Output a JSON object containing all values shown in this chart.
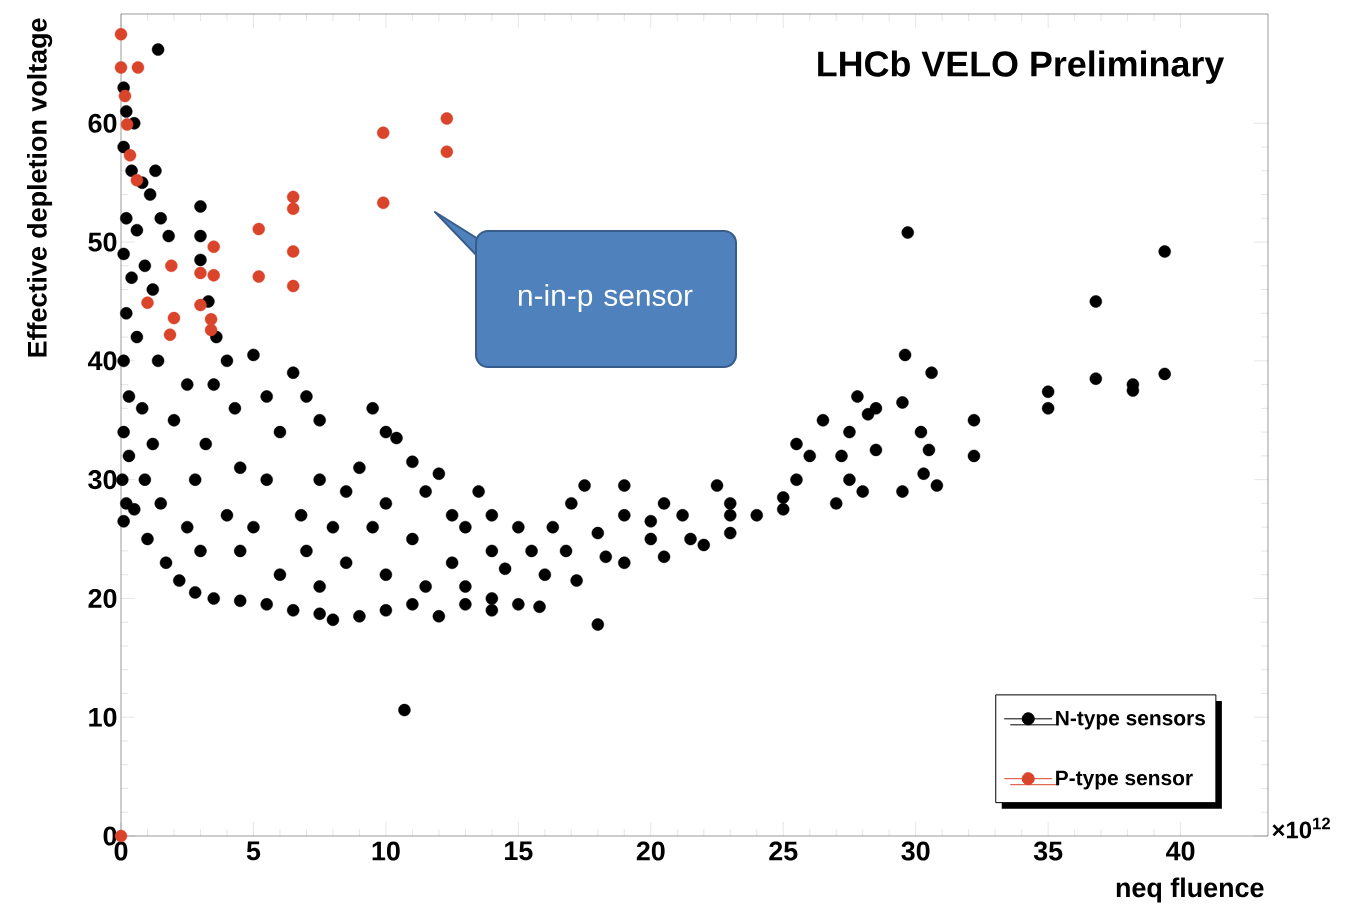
{
  "chart_data": {
    "type": "scatter",
    "title": "LHCb VELO Preliminary",
    "xlabel": "neq fluence",
    "ylabel": "Effective depletion voltage",
    "xlim": [
      0,
      43.3
    ],
    "ylim": [
      0,
      69.2
    ],
    "xticks": [
      0,
      5,
      10,
      15,
      20,
      25,
      30,
      35,
      40
    ],
    "yticks": [
      0,
      10,
      20,
      30,
      40,
      50,
      60
    ],
    "legend": "bottom right",
    "marker": "circle",
    "grid": false,
    "annotations": [
      "n-in-p sensor",
      "×10$^{12}$"
    ],
    "series": [
      {
        "name": "N-type sensors",
        "color": "#000000",
        "x": [
          1.4,
          0.1,
          0.2,
          0.5,
          0.1,
          0.4,
          0.8,
          1.1,
          1.3,
          0.2,
          0.6,
          1.5,
          1.8,
          0.1,
          0.4,
          0.9,
          1.2,
          0.2,
          0.6,
          1.4,
          0.1,
          0.3,
          0.8,
          0.1,
          0.3,
          0.05,
          0.2,
          0.5,
          0.1,
          0.9,
          1.2,
          1.5,
          1.0,
          1.7,
          2.2,
          2.8,
          3.5,
          4.5,
          5.5,
          6.5,
          7.5,
          8.0,
          9,
          10,
          11,
          12,
          13,
          14,
          15,
          15.8,
          2,
          2.5,
          2.8,
          3.0,
          3.0,
          3.0,
          3.3,
          3.6,
          3.5,
          3.2,
          2.5,
          3.0,
          4.0,
          4.3,
          4.5,
          4.0,
          4.5,
          5,
          5.5,
          6,
          5.5,
          5,
          6,
          6.5,
          7,
          7.5,
          7.5,
          6.8,
          7,
          7.5,
          8,
          8.5,
          8.5,
          9.5,
          9,
          9.5,
          10,
          10.4,
          10,
          10,
          10.7,
          11,
          11.5,
          11,
          11.5,
          12,
          12.5,
          12.5,
          13,
          13,
          13.5,
          14,
          14,
          14.5,
          14,
          15,
          15.5,
          16,
          16.3,
          17,
          17.5,
          16.8,
          17.2,
          18,
          18,
          18.3,
          19,
          19,
          19,
          20,
          20,
          20.5,
          20.5,
          21.2,
          21.5,
          22,
          22.5,
          23,
          23,
          23,
          24,
          25,
          25,
          25.5,
          26,
          25.5,
          26.5,
          27,
          27.5,
          27.5,
          28,
          27.8,
          28.2,
          28.5,
          27.2,
          28.5,
          29.5,
          29.5,
          29.6,
          29.7,
          30.2,
          30.5,
          30.6,
          30.8,
          30.3,
          32.2,
          32.2,
          35,
          35,
          36.8,
          36.8,
          38.2,
          38.2,
          39.4,
          39.4
        ],
        "values": [
          66.2,
          63,
          61,
          60,
          58,
          56,
          55,
          54,
          56,
          52,
          51,
          52,
          50.5,
          49,
          47,
          48,
          46,
          44,
          42,
          40,
          40,
          37,
          36,
          34,
          32,
          30,
          28,
          27.5,
          26.5,
          30,
          33,
          28,
          25,
          23,
          21.5,
          20.5,
          20,
          19.8,
          19.5,
          19,
          18.7,
          18.2,
          18.5,
          19,
          19.5,
          18.5,
          19.5,
          19,
          19.5,
          19.3,
          35,
          38,
          30,
          53,
          50.5,
          48.5,
          45,
          42,
          38,
          33,
          26,
          24,
          40,
          36,
          31,
          27,
          24,
          40.5,
          37,
          34,
          30,
          26,
          22,
          39,
          37,
          35,
          30,
          27,
          24,
          21,
          26,
          23,
          29,
          36,
          31,
          26,
          34,
          33.5,
          28,
          22,
          10.6,
          31.5,
          29,
          25,
          21,
          30.5,
          27,
          23,
          26,
          21,
          29,
          27,
          24,
          22.5,
          20,
          26,
          24,
          22,
          26,
          28,
          29.5,
          24,
          21.5,
          25.5,
          17.8,
          23.5,
          29.5,
          27,
          23,
          26.5,
          25,
          23.5,
          28,
          27,
          25,
          24.5,
          29.5,
          28,
          25.5,
          27,
          27,
          28.5,
          27.5,
          30,
          32,
          33,
          35,
          28,
          34,
          30,
          29,
          37,
          35.5,
          36,
          32,
          32.5,
          36.5,
          29,
          40.5,
          50.8,
          34,
          32.5,
          39,
          29.5,
          30.5,
          35,
          32,
          37.4,
          36,
          45,
          38.5,
          37.5,
          38,
          38.9,
          49.2
        ]
      },
      {
        "name": "P-type sensor",
        "color": "#d9442b",
        "x": [
          0,
          0,
          0.64,
          0.15,
          0.23,
          0.34,
          0.6,
          1.0,
          2.0,
          1.85,
          1.9,
          3.0,
          3.5,
          3.5,
          3.0,
          3.4,
          3.4,
          5.2,
          5.2,
          6.5,
          6.5,
          6.5,
          6.5,
          9.9,
          9.9,
          12.3,
          12.3,
          0
        ],
        "values": [
          67.5,
          64.7,
          64.7,
          62.3,
          59.9,
          57.3,
          55.2,
          44.9,
          43.6,
          42.2,
          48.0,
          47.4,
          47.2,
          49.6,
          44.7,
          42.6,
          43.5,
          51.1,
          47.1,
          53.8,
          52.8,
          49.2,
          46.3,
          59.2,
          53.3,
          60.4,
          57.6,
          0
        ]
      }
    ]
  }
}
